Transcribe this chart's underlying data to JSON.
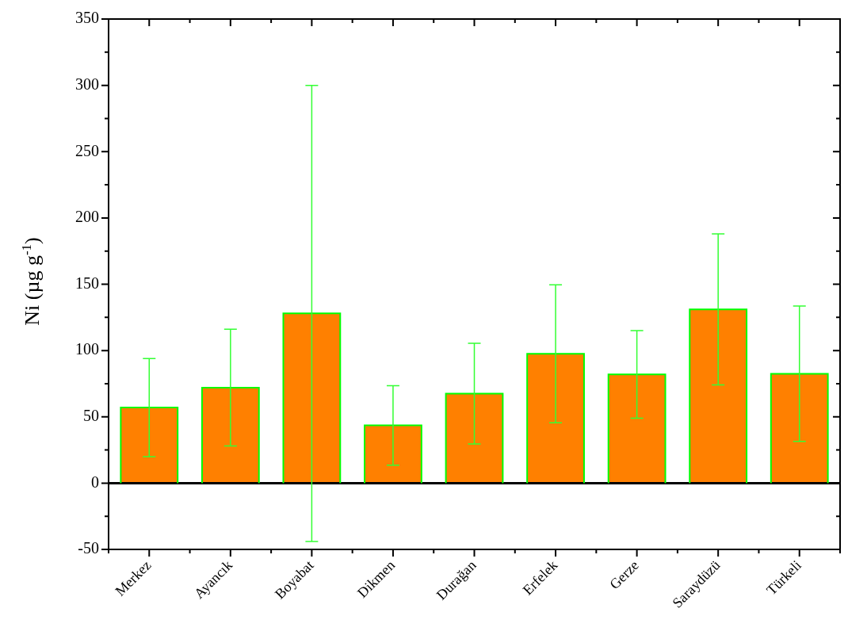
{
  "chart_data": {
    "type": "bar",
    "ylabel": "Ni (µg g$^{-1}$)",
    "categories": [
      "Merkez",
      "Ayancık",
      "Boyabat",
      "Dikmen",
      "Durağan",
      "Erfelek",
      "Gerze",
      "Saraydüzü",
      "Türkeli"
    ],
    "series": [
      {
        "color": "#ff8000",
        "values": [
          57,
          72,
          128,
          43.5,
          67.5,
          97.5,
          82,
          131,
          82.5
        ],
        "errors": [
          37,
          44,
          172,
          30,
          38,
          52,
          33,
          57,
          51
        ]
      }
    ],
    "ylim": [
      -50,
      350
    ],
    "yticks": [
      -50,
      {
        "value": -25,
        "label": null
      },
      0,
      {
        "value": 25,
        "label": null
      },
      50,
      {
        "value": 75,
        "label": null
      },
      100,
      {
        "value": 125,
        "label": null
      },
      150,
      {
        "value": 175,
        "label": null
      },
      200,
      {
        "value": 225,
        "label": null
      },
      250,
      {
        "value": 275,
        "label": null
      },
      300,
      {
        "value": 325,
        "label": null
      },
      350
    ],
    "ref_lines": [
      {
        "axis": "y",
        "value": 0,
        "color": "#000000"
      }
    ],
    "grid": false,
    "legend": false
  }
}
